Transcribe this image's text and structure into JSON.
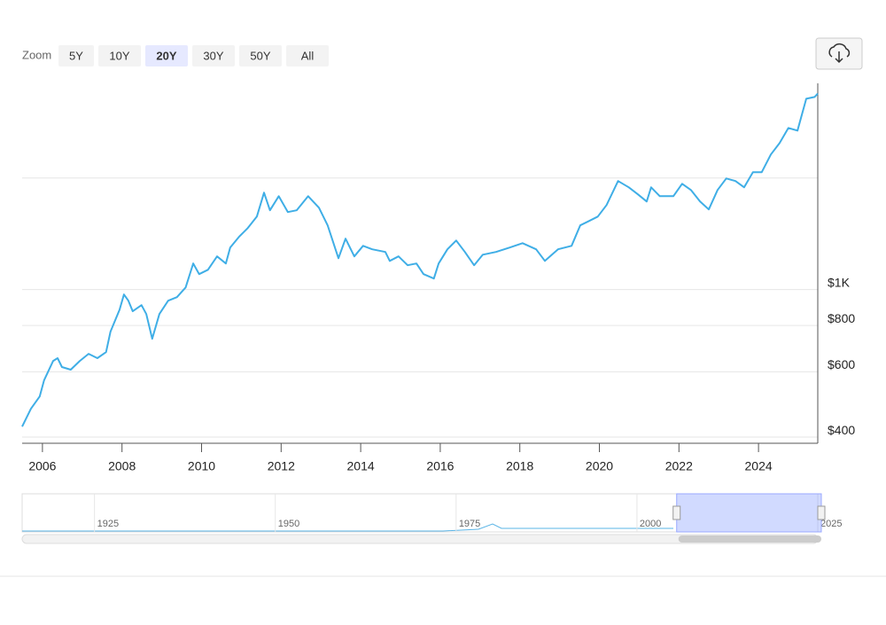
{
  "ui": {
    "zoom_label": "Zoom",
    "zoom_buttons": [
      "5Y",
      "10Y",
      "20Y",
      "30Y",
      "50Y",
      "All"
    ],
    "selected_zoom": 2
  },
  "chart_data": {
    "type": "line",
    "log_scale": true,
    "grid": true,
    "color": "#3faee6",
    "x": [
      2005.49,
      2005.71,
      2005.93,
      2006.04,
      2006.27,
      2006.38,
      2006.49,
      2006.71,
      2006.94,
      2007.16,
      2007.38,
      2007.6,
      2007.71,
      2007.94,
      2008.05,
      2008.16,
      2008.27,
      2008.49,
      2008.61,
      2008.76,
      2008.94,
      2009.16,
      2009.38,
      2009.6,
      2009.79,
      2009.94,
      2010.16,
      2010.39,
      2010.61,
      2010.72,
      2010.94,
      2011.16,
      2011.39,
      2011.57,
      2011.72,
      2011.94,
      2012.17,
      2012.39,
      2012.68,
      2012.95,
      2013.17,
      2013.44,
      2013.62,
      2013.84,
      2014.06,
      2014.29,
      2014.62,
      2014.73,
      2014.95,
      2015.18,
      2015.4,
      2015.58,
      2015.84,
      2015.96,
      2016.18,
      2016.4,
      2016.62,
      2016.85,
      2017.07,
      2017.4,
      2017.74,
      2018.07,
      2018.41,
      2018.63,
      2018.96,
      2019.3,
      2019.52,
      2019.74,
      2019.96,
      2020.18,
      2020.47,
      2020.74,
      2020.97,
      2021.19,
      2021.3,
      2021.52,
      2021.86,
      2022.08,
      2022.3,
      2022.53,
      2022.75,
      2022.97,
      2023.19,
      2023.42,
      2023.64,
      2023.86,
      2024.08,
      2024.31,
      2024.53,
      2024.75,
      2024.98,
      2025.2,
      2025.41,
      2025.49
    ],
    "values": [
      427,
      477,
      515,
      569,
      642,
      653,
      618,
      608,
      642,
      671,
      653,
      678,
      770,
      883,
      970,
      933,
      874,
      908,
      859,
      737,
      859,
      933,
      954,
      1013,
      1176,
      1101,
      1131,
      1229,
      1176,
      1298,
      1387,
      1465,
      1574,
      1826,
      1636,
      1786,
      1618,
      1636,
      1786,
      1663,
      1490,
      1215,
      1372,
      1229,
      1312,
      1284,
      1263,
      1195,
      1229,
      1163,
      1176,
      1101,
      1071,
      1176,
      1284,
      1356,
      1263,
      1163,
      1242,
      1263,
      1298,
      1334,
      1284,
      1195,
      1284,
      1312,
      1490,
      1531,
      1574,
      1690,
      1962,
      1887,
      1806,
      1728,
      1887,
      1786,
      1786,
      1929,
      1856,
      1728,
      1645,
      1856,
      1994,
      1962,
      1887,
      2072,
      2072,
      2314,
      2484,
      2728,
      2684,
      3272,
      3308,
      3380
    ],
    "xlim": [
      2005.49,
      2025.49
    ],
    "xticks": [
      2006,
      2008,
      2010,
      2012,
      2014,
      2016,
      2018,
      2020,
      2022,
      2024
    ],
    "ylim": [
      385,
      3600
    ],
    "yticks": [
      {
        "value": 400,
        "label": "$400"
      },
      {
        "value": 600,
        "label": "$600"
      },
      {
        "value": 800,
        "label": "$800"
      },
      {
        "value": 1000,
        "label": "$1K"
      },
      2000
    ],
    "navigator": {
      "xlim": [
        1915,
        2025
      ],
      "xticks": [
        1925,
        1950,
        1975,
        2000,
        2025
      ]
    }
  }
}
